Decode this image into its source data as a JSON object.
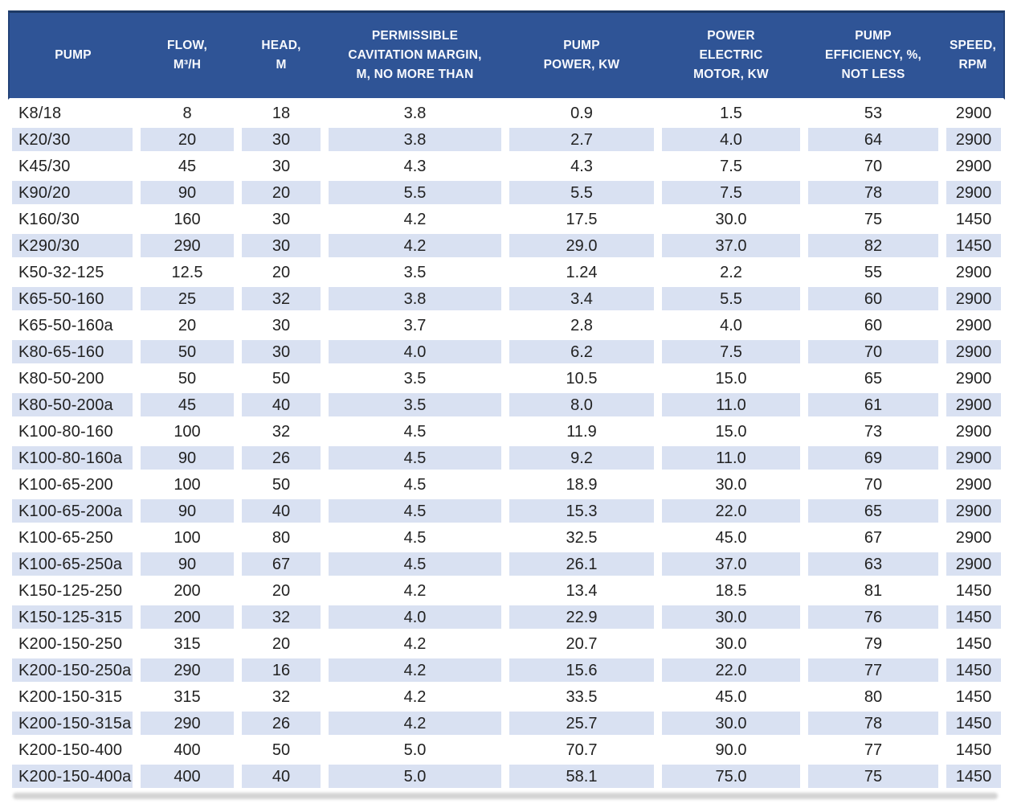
{
  "chart_data": {
    "type": "table",
    "title": "Pump specifications table",
    "columns": [
      {
        "key": "pump",
        "label": "PUMP"
      },
      {
        "key": "flow",
        "label": "FLOW,\nM³/H"
      },
      {
        "key": "head",
        "label": "HEAD,\nM"
      },
      {
        "key": "cavitation",
        "label": "PERMISSIBLE\nCAVITATION MARGIN,\nM, NO MORE THAN"
      },
      {
        "key": "pump-power",
        "label": "PUMP\nPOWER, KW"
      },
      {
        "key": "motor-power",
        "label": "POWER\nELECTRIC\nMOTOR, KW"
      },
      {
        "key": "efficiency",
        "label": "PUMP\nEFFICIENCY, %,\nNOT LESS"
      },
      {
        "key": "speed",
        "label": "SPEED,\nRPM"
      }
    ],
    "rows": [
      [
        "K8/18",
        "8",
        "18",
        "3.8",
        "0.9",
        "1.5",
        "53",
        "2900"
      ],
      [
        "K20/30",
        "20",
        "30",
        "3.8",
        "2.7",
        "4.0",
        "64",
        "2900"
      ],
      [
        "K45/30",
        "45",
        "30",
        "4.3",
        "4.3",
        "7.5",
        "70",
        "2900"
      ],
      [
        "K90/20",
        "90",
        "20",
        "5.5",
        "5.5",
        "7.5",
        "78",
        "2900"
      ],
      [
        "K160/30",
        "160",
        "30",
        "4.2",
        "17.5",
        "30.0",
        "75",
        "1450"
      ],
      [
        "K290/30",
        "290",
        "30",
        "4.2",
        "29.0",
        "37.0",
        "82",
        "1450"
      ],
      [
        "K50-32-125",
        "12.5",
        "20",
        "3.5",
        "1.24",
        "2.2",
        "55",
        "2900"
      ],
      [
        "K65-50-160",
        "25",
        "32",
        "3.8",
        "3.4",
        "5.5",
        "60",
        "2900"
      ],
      [
        "K65-50-160a",
        "20",
        "30",
        "3.7",
        "2.8",
        "4.0",
        "60",
        "2900"
      ],
      [
        "K80-65-160",
        "50",
        "30",
        "4.0",
        "6.2",
        "7.5",
        "70",
        "2900"
      ],
      [
        "K80-50-200",
        "50",
        "50",
        "3.5",
        "10.5",
        "15.0",
        "65",
        "2900"
      ],
      [
        "K80-50-200a",
        "45",
        "40",
        "3.5",
        "8.0",
        "11.0",
        "61",
        "2900"
      ],
      [
        "K100-80-160",
        "100",
        "32",
        "4.5",
        "11.9",
        "15.0",
        "73",
        "2900"
      ],
      [
        "K100-80-160a",
        "90",
        "26",
        "4.5",
        "9.2",
        "11.0",
        "69",
        "2900"
      ],
      [
        "K100-65-200",
        "100",
        "50",
        "4.5",
        "18.9",
        "30.0",
        "70",
        "2900"
      ],
      [
        "K100-65-200a",
        "90",
        "40",
        "4.5",
        "15.3",
        "22.0",
        "65",
        "2900"
      ],
      [
        "K100-65-250",
        "100",
        "80",
        "4.5",
        "32.5",
        "45.0",
        "67",
        "2900"
      ],
      [
        "K100-65-250a",
        "90",
        "67",
        "4.5",
        "26.1",
        "37.0",
        "63",
        "2900"
      ],
      [
        "K150-125-250",
        "200",
        "20",
        "4.2",
        "13.4",
        "18.5",
        "81",
        "1450"
      ],
      [
        "K150-125-315",
        "200",
        "32",
        "4.0",
        "22.9",
        "30.0",
        "76",
        "1450"
      ],
      [
        "K200-150-250",
        "315",
        "20",
        "4.2",
        "20.7",
        "30.0",
        "79",
        "1450"
      ],
      [
        "K200-150-250a",
        "290",
        "16",
        "4.2",
        "15.6",
        "22.0",
        "77",
        "1450"
      ],
      [
        "K200-150-315",
        "315",
        "32",
        "4.2",
        "33.5",
        "45.0",
        "80",
        "1450"
      ],
      [
        "K200-150-315a",
        "290",
        "26",
        "4.2",
        "25.7",
        "30.0",
        "78",
        "1450"
      ],
      [
        "K200-150-400",
        "400",
        "50",
        "5.0",
        "70.7",
        "90.0",
        "77",
        "1450"
      ],
      [
        "K200-150-400a",
        "400",
        "40",
        "5.0",
        "58.1",
        "75.0",
        "75",
        "1450"
      ]
    ],
    "layout": {
      "striping": "alternate rows white / light blue, starting white",
      "header_lines_max": 3,
      "grid": "white gutters between cells"
    },
    "colors": {
      "header_bg": "#2f5496",
      "header_text": "#ffffff",
      "stripe_row_bg": "#d9e1f2",
      "plain_row_bg": "#ffffff",
      "body_text": "#222222",
      "top_border": "#1e3a66",
      "shadow": "#d4d4d4"
    }
  }
}
